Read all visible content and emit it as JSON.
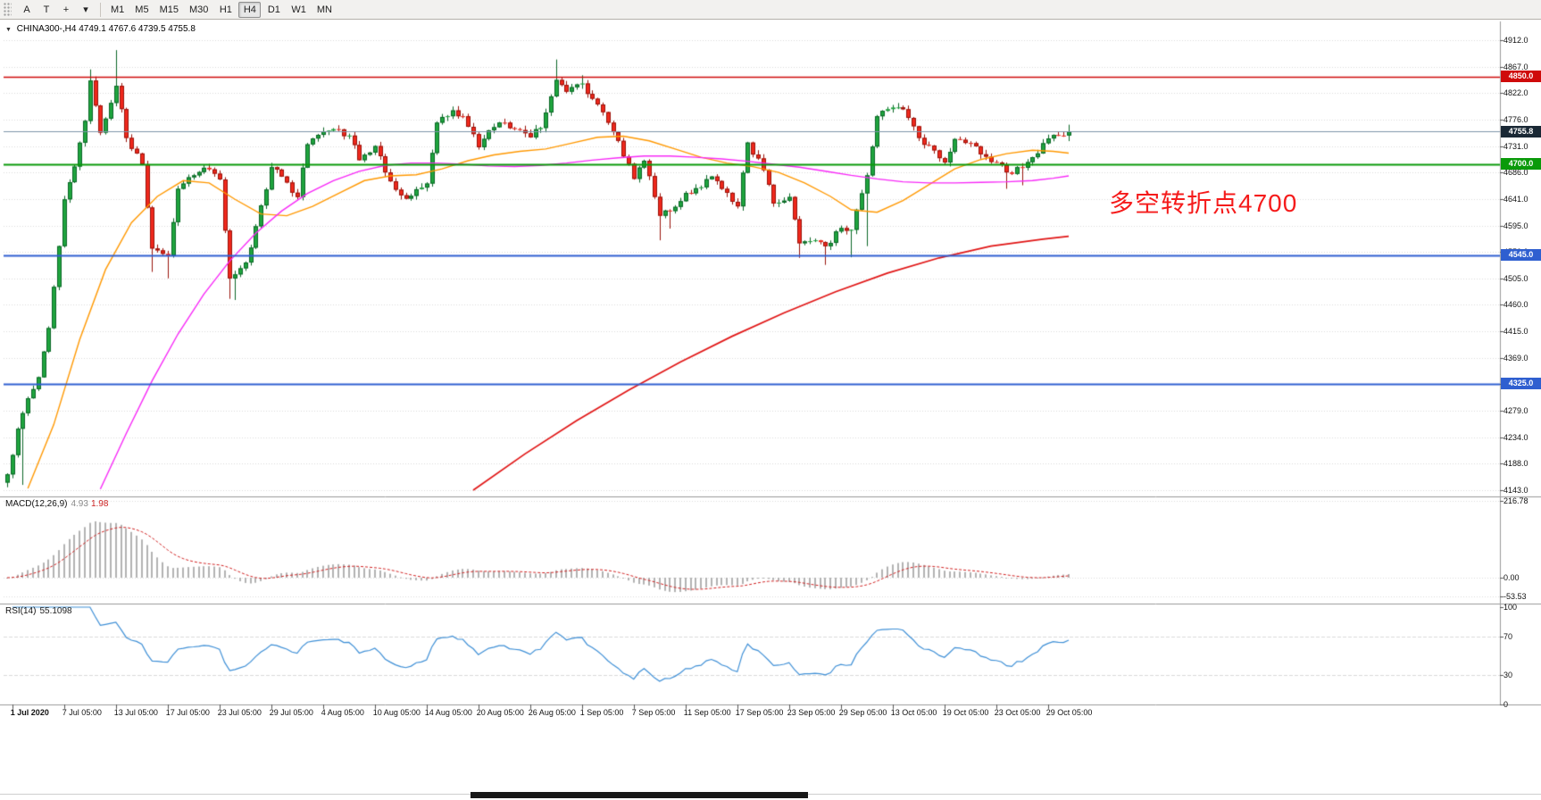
{
  "toolbar": {
    "tools": [
      {
        "name": "annotate-tool-button",
        "glyph": "A"
      },
      {
        "name": "text-tool-button",
        "glyph": "T"
      },
      {
        "name": "crosshair-tool-button",
        "glyph": "+"
      },
      {
        "name": "drawing-tools-dropdown",
        "glyph": "▾"
      }
    ],
    "timeframes": [
      "M1",
      "M5",
      "M15",
      "M30",
      "H1",
      "H4",
      "D1",
      "W1",
      "MN"
    ],
    "active_timeframe": "H4"
  },
  "chart": {
    "collapse_marker": "▼",
    "title": "CHINA300-,H4",
    "ohlc": "4749.1 4767.6 4739.5 4755.8"
  },
  "annotation": {
    "text": "多空转折点4700",
    "color": "#f51b1b"
  },
  "price_axis": {
    "labels": [
      "4912.0",
      "4867.0",
      "4822.0",
      "4776.0",
      "4731.0",
      "4686.0",
      "4641.0",
      "4595.0",
      "4550.0",
      "4505.0",
      "4460.0",
      "4415.0",
      "4369.0",
      "4324.0",
      "4279.0",
      "4234.0",
      "4188.0",
      "4143.0"
    ]
  },
  "hlines": [
    {
      "name": "resistance-line-4850",
      "label": "4850.0",
      "price": 4850.0,
      "color": "#cf0a0a",
      "width": 1.4,
      "tag_bg": "#cf0a0a"
    },
    {
      "name": "pivot-line-4700",
      "label": "4700.0",
      "price": 4700.0,
      "color": "#0a9a0a",
      "width": 2,
      "tag_bg": "#0a9a0a"
    },
    {
      "name": "support-line-4545",
      "label": "4545.0",
      "price": 4545.0,
      "color": "#2f5fd0",
      "width": 2,
      "tag_bg": "#2f5fd0"
    },
    {
      "name": "support-line-4325",
      "label": "4325.0",
      "price": 4325.0,
      "color": "#2f5fd0",
      "width": 2,
      "tag_bg": "#2f5fd0"
    }
  ],
  "current_price": {
    "label": "4755.8",
    "price": 4755.8,
    "line_color": "#7e95aa",
    "tag_bg": "#1a2835"
  },
  "macd": {
    "label": "MACD(12,26,9)",
    "value_main": "4.93",
    "value_signal": "1.98",
    "axis": [
      {
        "text": "216.78",
        "value": 216.78
      },
      {
        "text": "0.00",
        "value": 0
      },
      {
        "text": "-53.53",
        "value": -53.53
      }
    ],
    "range": [
      -53.53,
      216.78
    ],
    "histogram_color": "#b2b2b2",
    "signal_color": "#d02020",
    "params": {
      "fast": 12,
      "slow": 26,
      "signal": 9
    }
  },
  "rsi": {
    "label": "RSI(14)",
    "value": "55.1098",
    "axis": [
      {
        "text": "100",
        "value": 100
      },
      {
        "text": "70",
        "value": 70
      },
      {
        "text": "30",
        "value": 30
      },
      {
        "text": "0",
        "value": 0
      }
    ],
    "levels": [
      70,
      30
    ],
    "line_color": "#3e8fd6",
    "period": 14
  },
  "time_axis": {
    "labels": [
      "1 Jul 2020",
      "7 Jul 05:00",
      "13 Jul 05:00",
      "17 Jul 05:00",
      "23 Jul 05:00",
      "29 Jul 05:00",
      "4 Aug 05:00",
      "10 Aug 05:00",
      "14 Aug 05:00",
      "20 Aug 05:00",
      "26 Aug 05:00",
      "1 Sep 05:00",
      "7 Sep 05:00",
      "11 Sep 05:00",
      "17 Sep 05:00",
      "23 Sep 05:00",
      "29 Sep 05:00",
      "13 Oct 05:00",
      "19 Oct 05:00",
      "23 Oct 05:00",
      "29 Oct 05:00"
    ]
  },
  "chart_data": {
    "type": "candlestick",
    "symbol": "CHINA300-",
    "timeframe": "H4",
    "bars": 206,
    "bars_per_time_label": 10,
    "price_axis_top": 4912.0,
    "price_per_gridline": 45.235,
    "y_range": [
      4132,
      4941
    ],
    "ohlc_last": {
      "open": 4749.1,
      "high": 4767.6,
      "low": 4739.5,
      "close": 4755.8
    },
    "colors": {
      "up": "#1fa53e",
      "up_edge": "#0a6626",
      "down": "#f0281c",
      "down_edge": "#99120a"
    },
    "noise_seed": 77,
    "noise_amp": 6,
    "close_anchors": [
      [
        0,
        4170
      ],
      [
        2,
        4248
      ],
      [
        4,
        4300
      ],
      [
        6,
        4336
      ],
      [
        8,
        4420
      ],
      [
        10,
        4560
      ],
      [
        11,
        4640
      ],
      [
        13,
        4696
      ],
      [
        15,
        4774
      ],
      [
        16,
        4843
      ],
      [
        18,
        4754
      ],
      [
        21,
        4834
      ],
      [
        23,
        4745
      ],
      [
        26,
        4700
      ],
      [
        28,
        4556
      ],
      [
        31,
        4544
      ],
      [
        33,
        4658
      ],
      [
        36,
        4681
      ],
      [
        38,
        4694
      ],
      [
        41,
        4674
      ],
      [
        43,
        4505
      ],
      [
        46,
        4532
      ],
      [
        48,
        4594
      ],
      [
        51,
        4695
      ],
      [
        53,
        4679
      ],
      [
        56,
        4644
      ],
      [
        58,
        4734
      ],
      [
        61,
        4756
      ],
      [
        63,
        4760
      ],
      [
        66,
        4749
      ],
      [
        68,
        4707
      ],
      [
        71,
        4731
      ],
      [
        73,
        4686
      ],
      [
        76,
        4647
      ],
      [
        78,
        4646
      ],
      [
        81,
        4667
      ],
      [
        83,
        4771
      ],
      [
        86,
        4792
      ],
      [
        88,
        4782
      ],
      [
        91,
        4729
      ],
      [
        93,
        4758
      ],
      [
        96,
        4771
      ],
      [
        98,
        4760
      ],
      [
        101,
        4746
      ],
      [
        103,
        4762
      ],
      [
        106,
        4844
      ],
      [
        108,
        4824
      ],
      [
        111,
        4838
      ],
      [
        113,
        4812
      ],
      [
        116,
        4771
      ],
      [
        118,
        4740
      ],
      [
        121,
        4675
      ],
      [
        123,
        4706
      ],
      [
        126,
        4612
      ],
      [
        128,
        4620
      ],
      [
        131,
        4651
      ],
      [
        133,
        4659
      ],
      [
        136,
        4679
      ],
      [
        138,
        4658
      ],
      [
        141,
        4628
      ],
      [
        143,
        4737
      ],
      [
        146,
        4690
      ],
      [
        148,
        4633
      ],
      [
        151,
        4644
      ],
      [
        153,
        4565
      ],
      [
        156,
        4570
      ],
      [
        158,
        4560
      ],
      [
        161,
        4591
      ],
      [
        163,
        4588
      ],
      [
        166,
        4681
      ],
      [
        168,
        4782
      ],
      [
        171,
        4797
      ],
      [
        173,
        4794
      ],
      [
        176,
        4745
      ],
      [
        178,
        4732
      ],
      [
        181,
        4703
      ],
      [
        183,
        4743
      ],
      [
        186,
        4736
      ],
      [
        188,
        4717
      ],
      [
        191,
        4703
      ],
      [
        193,
        4686
      ],
      [
        196,
        4694
      ],
      [
        198,
        4712
      ],
      [
        201,
        4744
      ],
      [
        203,
        4749
      ],
      [
        205,
        4755.8
      ]
    ],
    "wick_anchors": [
      [
        0,
        "L",
        4148
      ],
      [
        3,
        "L",
        4152
      ],
      [
        16,
        "H",
        4862
      ],
      [
        21,
        "H",
        4895
      ],
      [
        28,
        "L",
        4516
      ],
      [
        31,
        "L",
        4505
      ],
      [
        43,
        "L",
        4470
      ],
      [
        44,
        "L",
        4468
      ],
      [
        106,
        "H",
        4879
      ],
      [
        111,
        "H",
        4852
      ],
      [
        126,
        "L",
        4570
      ],
      [
        128,
        "L",
        4590
      ],
      [
        153,
        "L",
        4540
      ],
      [
        158,
        "L",
        4528
      ],
      [
        163,
        "L",
        4541
      ],
      [
        166,
        "L",
        4560
      ],
      [
        193,
        "L",
        4658
      ],
      [
        196,
        "L",
        4664
      ]
    ],
    "ma_lines": [
      {
        "name": "ma-fast-orange",
        "color": "#ff9800",
        "width": 1.4,
        "anchors": [
          [
            4,
            4146
          ],
          [
            9,
            4255
          ],
          [
            14,
            4400
          ],
          [
            19,
            4520
          ],
          [
            24,
            4600
          ],
          [
            29,
            4645
          ],
          [
            34,
            4672
          ],
          [
            39,
            4668
          ],
          [
            44,
            4640
          ],
          [
            49,
            4615
          ],
          [
            54,
            4612
          ],
          [
            59,
            4628
          ],
          [
            64,
            4650
          ],
          [
            69,
            4672
          ],
          [
            74,
            4680
          ],
          [
            79,
            4682
          ],
          [
            84,
            4692
          ],
          [
            89,
            4706
          ],
          [
            94,
            4716
          ],
          [
            99,
            4722
          ],
          [
            104,
            4726
          ],
          [
            109,
            4736
          ],
          [
            114,
            4746
          ],
          [
            119,
            4748
          ],
          [
            124,
            4740
          ],
          [
            129,
            4726
          ],
          [
            134,
            4712
          ],
          [
            139,
            4702
          ],
          [
            144,
            4696
          ],
          [
            149,
            4686
          ],
          [
            154,
            4668
          ],
          [
            159,
            4645
          ],
          [
            163,
            4622
          ],
          [
            168,
            4618
          ],
          [
            173,
            4638
          ],
          [
            178,
            4665
          ],
          [
            183,
            4692
          ],
          [
            188,
            4708
          ],
          [
            193,
            4718
          ],
          [
            198,
            4724
          ],
          [
            202,
            4722
          ],
          [
            205,
            4719
          ]
        ]
      },
      {
        "name": "ma-mid-magenta",
        "color": "#f728f7",
        "width": 1.4,
        "anchors": [
          [
            18,
            4145
          ],
          [
            23,
            4240
          ],
          [
            28,
            4330
          ],
          [
            33,
            4410
          ],
          [
            38,
            4478
          ],
          [
            43,
            4535
          ],
          [
            48,
            4582
          ],
          [
            53,
            4620
          ],
          [
            58,
            4650
          ],
          [
            63,
            4672
          ],
          [
            68,
            4688
          ],
          [
            73,
            4698
          ],
          [
            78,
            4702
          ],
          [
            83,
            4702
          ],
          [
            88,
            4700
          ],
          [
            93,
            4697
          ],
          [
            98,
            4696
          ],
          [
            103,
            4698
          ],
          [
            108,
            4702
          ],
          [
            113,
            4707
          ],
          [
            118,
            4711
          ],
          [
            123,
            4714
          ],
          [
            128,
            4714
          ],
          [
            133,
            4712
          ],
          [
            138,
            4709
          ],
          [
            143,
            4705
          ],
          [
            148,
            4700
          ],
          [
            153,
            4695
          ],
          [
            158,
            4688
          ],
          [
            163,
            4681
          ],
          [
            168,
            4675
          ],
          [
            173,
            4670
          ],
          [
            178,
            4668
          ],
          [
            183,
            4668
          ],
          [
            188,
            4669
          ],
          [
            193,
            4670
          ],
          [
            198,
            4672
          ],
          [
            202,
            4676
          ],
          [
            205,
            4680
          ]
        ]
      },
      {
        "name": "ma-slow-red",
        "color": "#e01515",
        "width": 1.7,
        "anchors": [
          [
            90,
            4143
          ],
          [
            100,
            4205
          ],
          [
            110,
            4262
          ],
          [
            120,
            4314
          ],
          [
            130,
            4362
          ],
          [
            140,
            4406
          ],
          [
            150,
            4446
          ],
          [
            160,
            4482
          ],
          [
            170,
            4514
          ],
          [
            180,
            4540
          ],
          [
            190,
            4560
          ],
          [
            200,
            4572
          ],
          [
            205,
            4577
          ]
        ]
      }
    ]
  }
}
